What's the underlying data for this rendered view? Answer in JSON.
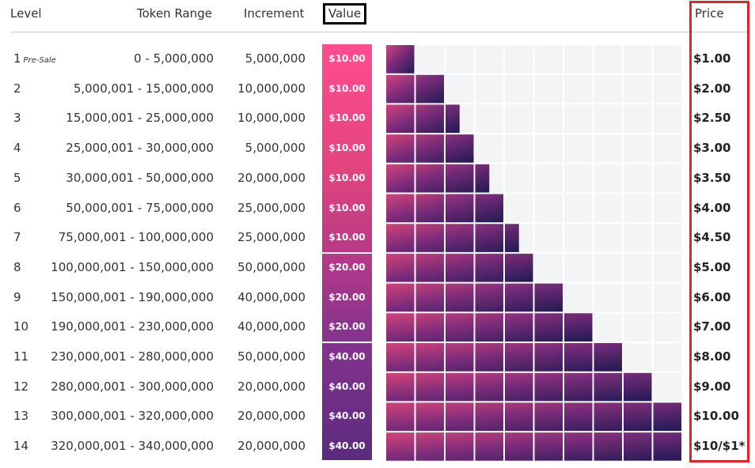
{
  "headers": {
    "level": "Level",
    "token_range": "Token Range",
    "increment": "Increment",
    "value": "Value",
    "price": "Price"
  },
  "chart_data": {
    "type": "table",
    "columns": [
      "Level",
      "Token Range",
      "Increment",
      "Value",
      "Price"
    ],
    "bar_levels": [
      1,
      2,
      2.5,
      3,
      3.5,
      4,
      4.5,
      5,
      6,
      7,
      8,
      9,
      10,
      10
    ],
    "bar_max": 10,
    "colors": {
      "bar_start": "#d6437a",
      "bar_end": "#1d1a52",
      "track": "#f3f4f6",
      "price_frame": "#e0242c"
    },
    "rows": [
      {
        "level": "1",
        "note": "Pre-Sale",
        "token_range": "0 - 5,000,000",
        "increment": "5,000,000",
        "value": "$10.00",
        "price": "$1.00"
      },
      {
        "level": "2",
        "note": "",
        "token_range": "5,000,001 - 15,000,000",
        "increment": "10,000,000",
        "value": "$10.00",
        "price": "$2.00"
      },
      {
        "level": "3",
        "note": "",
        "token_range": "15,000,001 - 25,000,000",
        "increment": "10,000,000",
        "value": "$10.00",
        "price": "$2.50"
      },
      {
        "level": "4",
        "note": "",
        "token_range": "25,000,001 - 30,000,000",
        "increment": "5,000,000",
        "value": "$10.00",
        "price": "$3.00"
      },
      {
        "level": "5",
        "note": "",
        "token_range": "30,000,001 - 50,000,000",
        "increment": "20,000,000",
        "value": "$10.00",
        "price": "$3.50"
      },
      {
        "level": "6",
        "note": "",
        "token_range": "50,000,001 - 75,000,000",
        "increment": "25,000,000",
        "value": "$10.00",
        "price": "$4.00"
      },
      {
        "level": "7",
        "note": "",
        "token_range": "75,000,001 - 100,000,000",
        "increment": "25,000,000",
        "value": "$10.00",
        "price": "$4.50"
      },
      {
        "level": "8",
        "note": "",
        "token_range": "100,000,001 - 150,000,000",
        "increment": "50,000,000",
        "value": "$20.00",
        "price": "$5.00"
      },
      {
        "level": "9",
        "note": "",
        "token_range": "150,000,001 - 190,000,000",
        "increment": "40,000,000",
        "value": "$20.00",
        "price": "$6.00"
      },
      {
        "level": "10",
        "note": "",
        "token_range": "190,000,001 - 230,000,000",
        "increment": "40,000,000",
        "value": "$20.00",
        "price": "$7.00"
      },
      {
        "level": "11",
        "note": "",
        "token_range": "230,000,001 - 280,000,000",
        "increment": "50,000,000",
        "value": "$40.00",
        "price": "$8.00"
      },
      {
        "level": "12",
        "note": "",
        "token_range": "280,000,001 - 300,000,000",
        "increment": "20,000,000",
        "value": "$40.00",
        "price": "$9.00"
      },
      {
        "level": "13",
        "note": "",
        "token_range": "300,000,001 - 320,000,000",
        "increment": "20,000,000",
        "value": "$40.00",
        "price": "$10.00"
      },
      {
        "level": "14",
        "note": "",
        "token_range": "320,000,001 - 340,000,000",
        "increment": "20,000,000",
        "value": "$40.00",
        "price": "$10/$1*"
      }
    ]
  }
}
